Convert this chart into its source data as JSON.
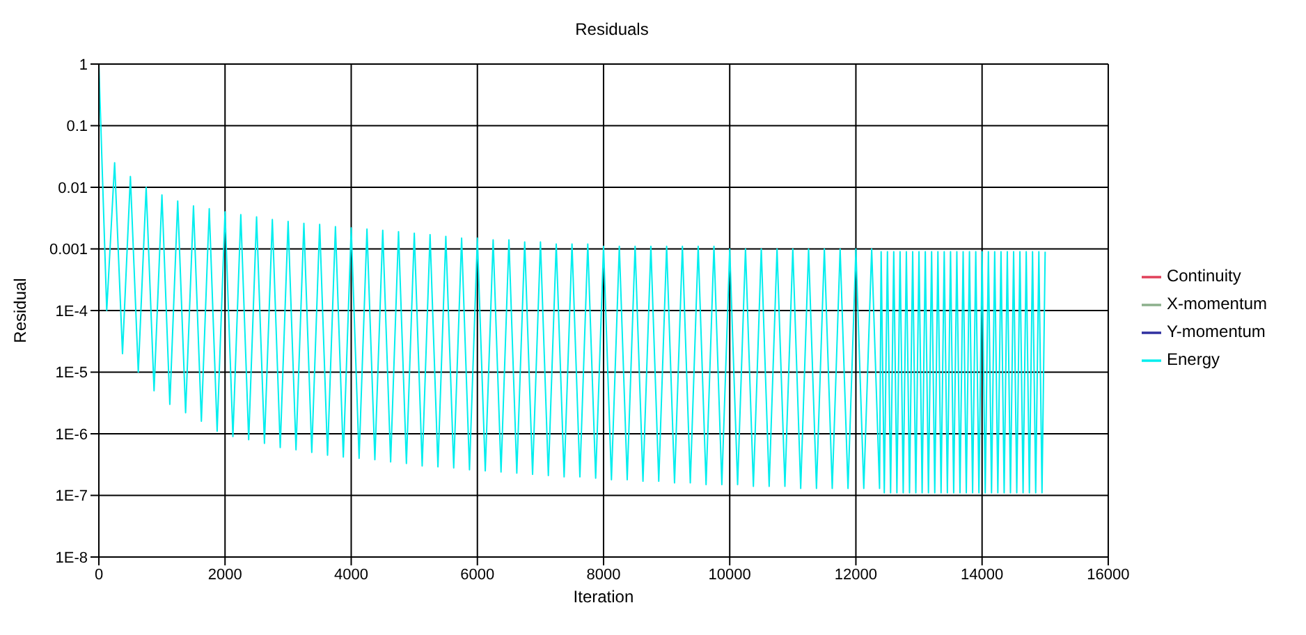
{
  "chart_data": {
    "type": "line",
    "title": "Residuals",
    "xlabel": "Iteration",
    "ylabel": "Residual",
    "log": "y",
    "grid": true,
    "legend": "right",
    "marker": "none",
    "line_style": "solid",
    "xlim": [
      0,
      16000
    ],
    "xticks": [
      0,
      2000,
      4000,
      6000,
      8000,
      10000,
      12000,
      14000,
      16000
    ],
    "ylim": [
      1e-08,
      1
    ],
    "yticks": [
      {
        "value": 1e-08,
        "label": "1E-8"
      },
      {
        "value": 1e-07,
        "label": "1E-7"
      },
      {
        "value": 1e-06,
        "label": "1E-6"
      },
      {
        "value": 1e-05,
        "label": "1E-5"
      },
      {
        "value": 0.0001,
        "label": "1E-4"
      },
      0.001,
      0.01,
      0.1,
      1
    ],
    "series": [
      {
        "name": "Continuity",
        "color": "#e0405a"
      },
      {
        "name": "X-momentum",
        "color": "#8cb08c"
      },
      {
        "name": "Y-momentum",
        "color": "#3030a0"
      },
      {
        "name": "Energy",
        "color": "#00eeee",
        "x": [
          0,
          125,
          250,
          375,
          500,
          625,
          750,
          875,
          1000,
          1125,
          1250,
          1375,
          1500,
          1625,
          1750,
          1875,
          2000,
          2125,
          2250,
          2375,
          2500,
          2625,
          2750,
          2875,
          3000,
          3125,
          3250,
          3375,
          3500,
          3625,
          3750,
          3875,
          4000,
          4125,
          4250,
          4375,
          4500,
          4625,
          4750,
          4875,
          5000,
          5125,
          5250,
          5375,
          5500,
          5625,
          5750,
          5875,
          6000,
          6125,
          6250,
          6375,
          6500,
          6625,
          6750,
          6875,
          7000,
          7125,
          7250,
          7375,
          7500,
          7625,
          7750,
          7875,
          8000,
          8125,
          8250,
          8375,
          8500,
          8625,
          8750,
          8875,
          9000,
          9125,
          9250,
          9375,
          9500,
          9625,
          9750,
          9875,
          10000,
          10125,
          10250,
          10375,
          10500,
          10625,
          10750,
          10875,
          11000,
          11125,
          11250,
          11375,
          11500,
          11625,
          11750,
          11875,
          12000,
          12125,
          12250,
          12375,
          12400,
          12450,
          12500,
          12550,
          12600,
          12650,
          12700,
          12750,
          12800,
          12850,
          12900,
          12950,
          13000,
          13050,
          13100,
          13150,
          13200,
          13250,
          13300,
          13350,
          13400,
          13450,
          13500,
          13550,
          13600,
          13650,
          13700,
          13750,
          13800,
          13850,
          13900,
          13950,
          14000,
          14050,
          14100,
          14150,
          14200,
          14250,
          14300,
          14350,
          14400,
          14450,
          14500,
          14550,
          14600,
          14650,
          14700,
          14750,
          14800,
          14850,
          14900,
          14950,
          15000
        ],
        "values": [
          1,
          0.0001,
          0.025,
          2e-05,
          0.015,
          1e-05,
          0.01,
          5e-06,
          0.0075,
          3e-06,
          0.006,
          2.2e-06,
          0.005,
          1.6e-06,
          0.0045,
          1.1e-06,
          0.004,
          9e-07,
          0.0036,
          8e-07,
          0.0033,
          7e-07,
          0.003,
          6e-07,
          0.0028,
          5.5e-07,
          0.0026,
          5e-07,
          0.0025,
          4.5e-07,
          0.0023,
          4.2e-07,
          0.0022,
          4e-07,
          0.0021,
          3.8e-07,
          0.002,
          3.5e-07,
          0.0019,
          3.3e-07,
          0.0018,
          3e-07,
          0.0017,
          2.9e-07,
          0.0016,
          2.8e-07,
          0.0015,
          2.6e-07,
          0.0015,
          2.5e-07,
          0.0014,
          2.4e-07,
          0.0014,
          2.3e-07,
          0.0013,
          2.2e-07,
          0.0013,
          2.1e-07,
          0.0012,
          2e-07,
          0.0012,
          2e-07,
          0.0012,
          1.9e-07,
          0.0011,
          1.8e-07,
          0.0011,
          1.8e-07,
          0.0011,
          1.7e-07,
          0.0011,
          1.7e-07,
          0.0011,
          1.6e-07,
          0.0011,
          1.6e-07,
          0.0011,
          1.5e-07,
          0.0011,
          1.5e-07,
          0.001,
          1.5e-07,
          0.001,
          1.4e-07,
          0.001,
          1.4e-07,
          0.001,
          1.4e-07,
          0.001,
          1.3e-07,
          0.001,
          1.3e-07,
          0.001,
          1.3e-07,
          0.001,
          1.3e-07,
          0.001,
          1.3e-07,
          0.001,
          1.3e-07,
          0.0009,
          1.1e-07,
          0.0009,
          1.1e-07,
          0.0009,
          1.1e-07,
          0.0009,
          1.1e-07,
          0.0009,
          1.1e-07,
          0.0009,
          1.1e-07,
          0.0009,
          1.1e-07,
          0.0009,
          1.1e-07,
          0.0009,
          1.1e-07,
          0.0009,
          1.1e-07,
          0.0009,
          1.1e-07,
          0.0009,
          1.1e-07,
          0.0009,
          1.1e-07,
          0.0009,
          1.1e-07,
          0.0009,
          1.1e-07,
          0.0009,
          1.1e-07,
          0.0009,
          1.1e-07,
          0.0009,
          1.1e-07,
          0.0009,
          1.1e-07,
          0.0009,
          1.1e-07,
          0.0009,
          1.1e-07,
          0.0009,
          1.1e-07,
          0.0009,
          1.1e-07,
          0.0009,
          1.1e-07,
          0.0009,
          1.1e-07,
          0.0009,
          1.1e-07,
          0.0009
        ]
      }
    ]
  }
}
